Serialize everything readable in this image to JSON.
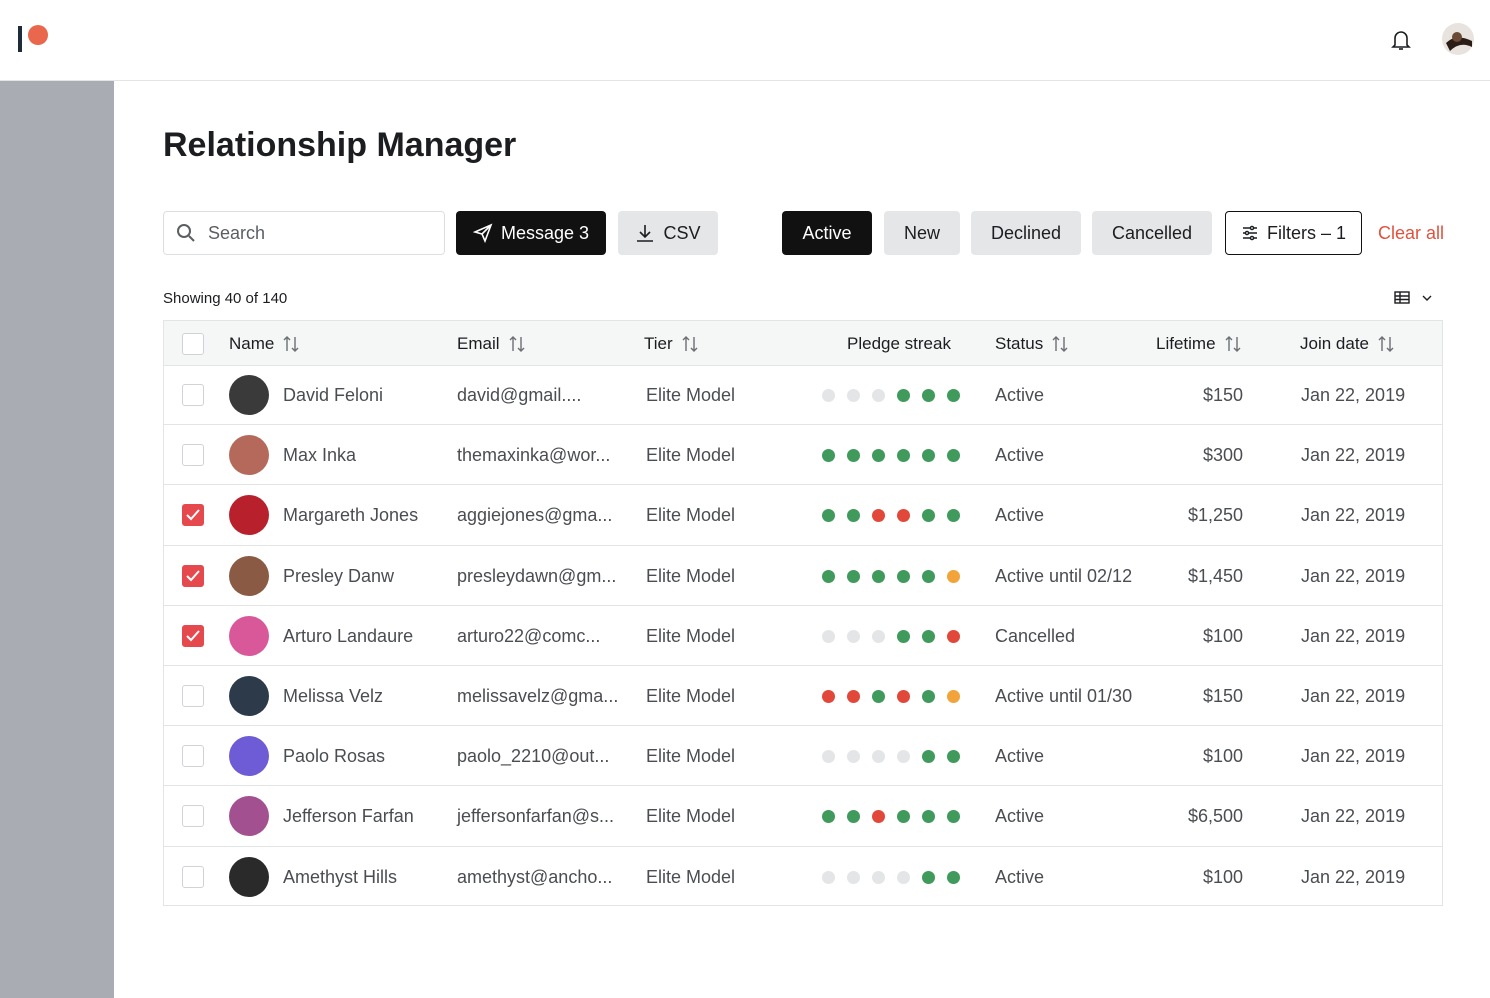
{
  "page": {
    "title": "Relationship Manager"
  },
  "toolbar": {
    "search_placeholder": "Search",
    "message_button": "Message 3",
    "csv_button": "CSV",
    "filters": [
      "Active",
      "New",
      "Declined",
      "Cancelled"
    ],
    "active_filter": 0,
    "filters_button": "Filters – 1",
    "clear_all": "Clear all"
  },
  "summary": "Showing 40 of 140",
  "table": {
    "columns": [
      "Name",
      "Email",
      "Tier",
      "Pledge streak",
      "Status",
      "Lifetime",
      "Join date"
    ],
    "rows": [
      {
        "name": "David Feloni",
        "email": "david@gmail....",
        "tier": "Elite Model",
        "streak": [
          "#e3e5e7",
          "#e3e5e7",
          "#e3e5e7",
          "#3f9a5c",
          "#3f9a5c",
          "#3f9a5c"
        ],
        "status": "Active",
        "lifetime": "$150",
        "join_date": "Jan 22, 2019",
        "selected": false
      },
      {
        "name": "Max Inka",
        "email": "themaxinka@wor...",
        "tier": "Elite Model",
        "streak": [
          "#3f9a5c",
          "#3f9a5c",
          "#3f9a5c",
          "#3f9a5c",
          "#3f9a5c",
          "#3f9a5c"
        ],
        "status": "Active",
        "lifetime": "$300",
        "join_date": "Jan 22, 2019",
        "selected": false
      },
      {
        "name": "Margareth Jones",
        "email": "aggiejones@gma...",
        "tier": "Elite Model",
        "streak": [
          "#3f9a5c",
          "#3f9a5c",
          "#e2483a",
          "#e2483a",
          "#3f9a5c",
          "#3f9a5c"
        ],
        "status": "Active",
        "lifetime": "$1,250",
        "join_date": "Jan 22, 2019",
        "selected": true
      },
      {
        "name": "Presley Danw",
        "email": "presleydawn@gm...",
        "tier": "Elite Model",
        "streak": [
          "#3f9a5c",
          "#3f9a5c",
          "#3f9a5c",
          "#3f9a5c",
          "#3f9a5c",
          "#f2a33a"
        ],
        "status": "Active until 02/12",
        "lifetime": "$1,450",
        "join_date": "Jan 22, 2019",
        "selected": true
      },
      {
        "name": "Arturo Landaure",
        "email": "arturo22@comc...",
        "tier": "Elite Model",
        "streak": [
          "#e3e5e7",
          "#e3e5e7",
          "#e3e5e7",
          "#3f9a5c",
          "#3f9a5c",
          "#e2483a"
        ],
        "status": "Cancelled",
        "lifetime": "$100",
        "join_date": "Jan 22, 2019",
        "selected": true
      },
      {
        "name": "Melissa Velz",
        "email": "melissavelz@gma...",
        "tier": "Elite Model",
        "streak": [
          "#e2483a",
          "#e2483a",
          "#3f9a5c",
          "#e2483a",
          "#3f9a5c",
          "#f2a33a"
        ],
        "status": "Active until 01/30",
        "lifetime": "$150",
        "join_date": "Jan 22, 2019",
        "selected": false
      },
      {
        "name": "Paolo Rosas",
        "email": "paolo_2210@out...",
        "tier": "Elite Model",
        "streak": [
          "#e3e5e7",
          "#e3e5e7",
          "#e3e5e7",
          "#e3e5e7",
          "#3f9a5c",
          "#3f9a5c"
        ],
        "status": "Active",
        "lifetime": "$100",
        "join_date": "Jan 22, 2019",
        "selected": false
      },
      {
        "name": "Jefferson Farfan",
        "email": "jeffersonfarfan@s...",
        "tier": "Elite Model",
        "streak": [
          "#3f9a5c",
          "#3f9a5c",
          "#e2483a",
          "#3f9a5c",
          "#3f9a5c",
          "#3f9a5c"
        ],
        "status": "Active",
        "lifetime": "$6,500",
        "join_date": "Jan 22, 2019",
        "selected": false
      },
      {
        "name": "Amethyst Hills",
        "email": "amethyst@ancho...",
        "tier": "Elite Model",
        "streak": [
          "#e3e5e7",
          "#e3e5e7",
          "#e3e5e7",
          "#e3e5e7",
          "#3f9a5c",
          "#3f9a5c"
        ],
        "status": "Active",
        "lifetime": "$100",
        "join_date": "Jan 22, 2019",
        "selected": false
      }
    ]
  }
}
